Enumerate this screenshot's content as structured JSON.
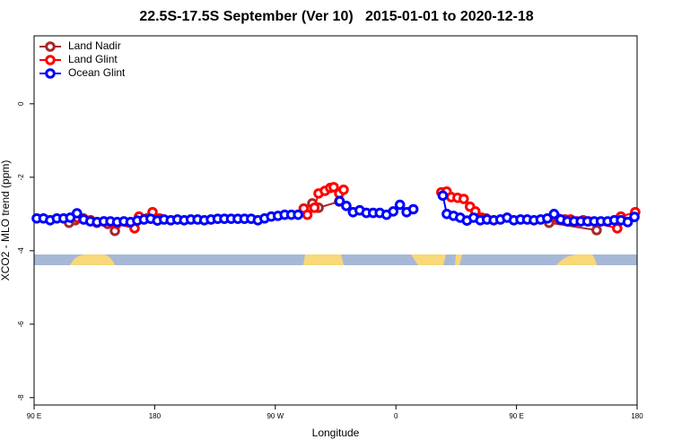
{
  "chart_data": {
    "type": "line",
    "title": "22.5S-17.5S September (Ver 10)   2015-01-01 to 2020-12-18",
    "xlabel": "Longitude",
    "ylabel": "XCO2 - MLO trend (ppm)",
    "xlim": [
      90,
      540
    ],
    "xticks": [
      {
        "value": 90,
        "label": "90 E"
      },
      180,
      {
        "value": 270,
        "label": "90 W"
      },
      {
        "value": 360,
        "label": "0"
      },
      {
        "value": 450,
        "label": "90 E"
      },
      {
        "value": 540,
        "label": "180"
      }
    ],
    "ylim": [
      -8.2,
      1.85
    ],
    "yticks": [
      0,
      -2,
      -4,
      -6,
      -8
    ],
    "legend": "top-left",
    "series": [
      {
        "name": "Land Nadir",
        "color": "#a52a2a",
        "x": [
          116.1,
          120.8,
          144.9,
          150.3,
          null,
          297.6,
          302.3,
          317.7,
          null,
          474.3,
          509.8
        ],
        "values": [
          -3.24,
          -3.17,
          -3.27,
          -3.46,
          null,
          -2.71,
          -2.83,
          -2.66,
          null,
          -3.24,
          -3.44
        ]
      },
      {
        "name": "Land Glint",
        "color": "#ff0000",
        "x": [
          122.1,
          126.8,
          132.2,
          136.9,
          142.2,
          147.6,
          151.6,
          165,
          168.3,
          178.4,
          183.7,
          null,
          291.2,
          293.9,
          299.2,
          302.3,
          307.0,
          311.0,
          313.6,
          317.7,
          321.0,
          null,
          393.9,
          397.9,
          401.3,
          406,
          410.6,
          415.3,
          419.3,
          424.0,
          427.4,
          null,
          481.0,
          486.4,
          490.4,
          495.1,
          499.8,
          503.8,
          525.2,
          527.9,
          538.6
        ],
        "values": [
          -3.1,
          -3.12,
          -3.17,
          -3.24,
          -3.2,
          -3.24,
          -3.27,
          -3.39,
          -3.07,
          -2.95,
          -3.12,
          null,
          -2.85,
          -3.02,
          -2.83,
          -2.44,
          -2.37,
          -2.29,
          -2.27,
          -2.44,
          -2.34,
          null,
          -2.41,
          -2.39,
          -2.54,
          -2.56,
          -2.59,
          -2.8,
          -2.93,
          -3.1,
          -3.12,
          null,
          -3.12,
          -3.15,
          -3.15,
          -3.2,
          -3.17,
          -3.2,
          -3.39,
          -3.07,
          -2.95
        ]
      },
      {
        "name": "Ocean Glint",
        "color": "#0000ff",
        "x": [
          92,
          97,
          102,
          107,
          112,
          117,
          122,
          127,
          132,
          137,
          142,
          147,
          152,
          157,
          162,
          167,
          172,
          177,
          182,
          187,
          192,
          197,
          202,
          207,
          212,
          217,
          222,
          227,
          232,
          237,
          242,
          247,
          252,
          257,
          262,
          267,
          272,
          277,
          282,
          287,
          null,
          318,
          323,
          328,
          333,
          338,
          343,
          348,
          353,
          358,
          363,
          368,
          373,
          null,
          395,
          398,
          403,
          408,
          413,
          418,
          423,
          428,
          433,
          438,
          443,
          448,
          453,
          458,
          463,
          468,
          473,
          478,
          483,
          488,
          493,
          498,
          503,
          508,
          513,
          518,
          523,
          528,
          533,
          538
        ],
        "values": [
          -3.12,
          -3.12,
          -3.17,
          -3.12,
          -3.12,
          -3.1,
          -2.98,
          -3.15,
          -3.2,
          -3.22,
          -3.2,
          -3.2,
          -3.22,
          -3.2,
          -3.22,
          -3.18,
          -3.15,
          -3.13,
          -3.18,
          -3.15,
          -3.17,
          -3.15,
          -3.17,
          -3.15,
          -3.15,
          -3.17,
          -3.15,
          -3.13,
          -3.13,
          -3.13,
          -3.13,
          -3.13,
          -3.13,
          -3.17,
          -3.12,
          -3.07,
          -3.05,
          -3.02,
          -3.02,
          -3.02,
          null,
          -2.65,
          -2.78,
          -2.95,
          -2.9,
          -2.97,
          -2.97,
          -2.97,
          -3.02,
          -2.93,
          -2.75,
          -2.95,
          -2.87,
          null,
          -2.5,
          -3.0,
          -3.05,
          -3.1,
          -3.18,
          -3.1,
          -3.17,
          -3.15,
          -3.17,
          -3.15,
          -3.1,
          -3.17,
          -3.15,
          -3.15,
          -3.17,
          -3.15,
          -3.12,
          -3.0,
          -3.15,
          -3.2,
          -3.2,
          -3.2,
          -3.2,
          -3.2,
          -3.2,
          -3.2,
          -3.17,
          -3.17,
          -3.22,
          -3.08
        ]
      }
    ]
  }
}
